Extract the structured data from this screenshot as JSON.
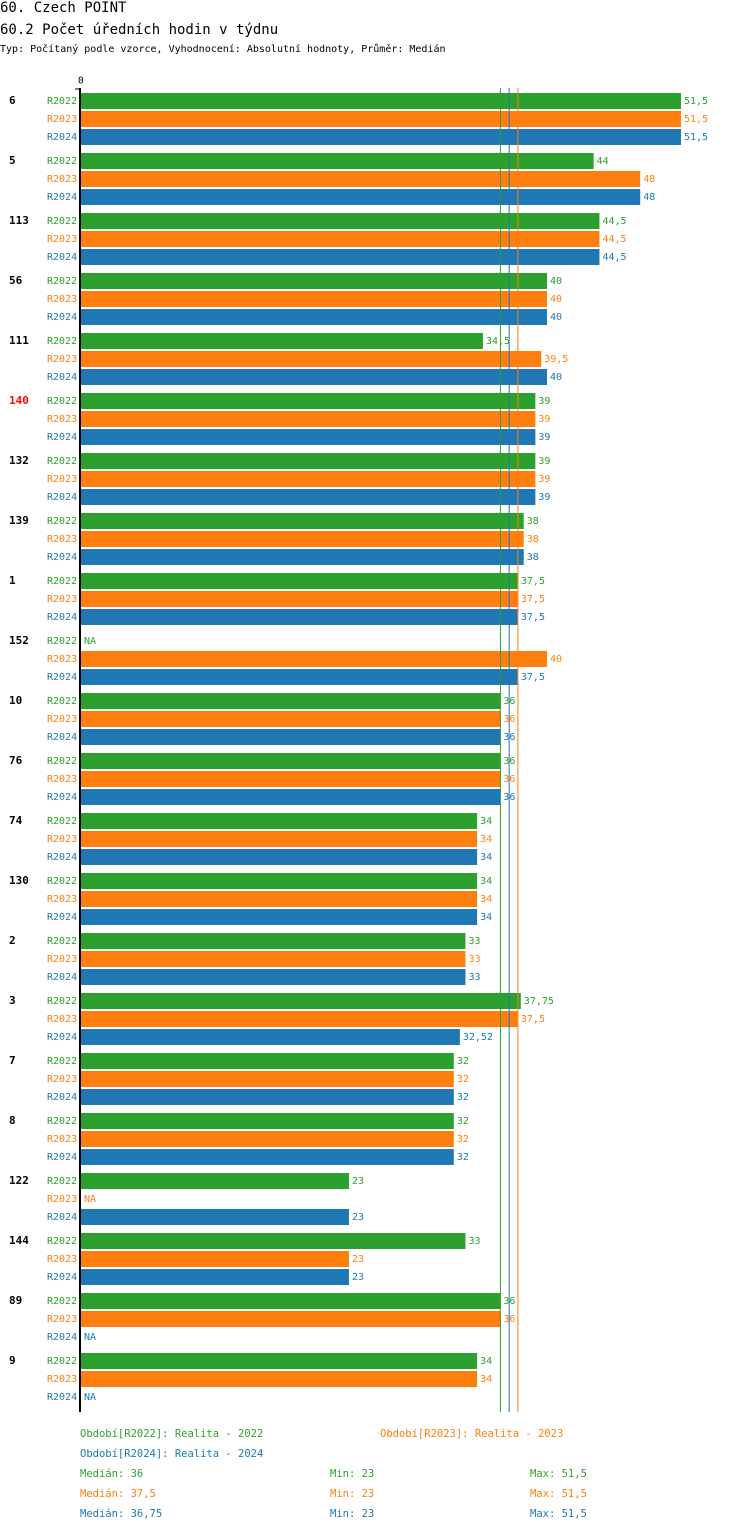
{
  "header": {
    "title": "60. Czech POINT",
    "subtitle": "60.2 Počet úředních hodin v týdnu",
    "type_line": "Typ: Počítaný podle vzorce, Vyhodnocení: Absolutní hodnoty, Průměr: Medián"
  },
  "colors": {
    "R2022": "#2ca02c",
    "R2023": "#ff7f0e",
    "R2024": "#1f77b4",
    "highlight": "#ff0000",
    "axis": "#000000"
  },
  "chart_data": {
    "type": "bar",
    "orientation": "horizontal",
    "axis_zero_label": "0",
    "xlim": [
      0,
      51.5
    ],
    "series_names": [
      "R2022",
      "R2023",
      "R2024"
    ],
    "categories": [
      {
        "label": "6",
        "highlight": false,
        "values": [
          51.5,
          51.5,
          51.5
        ],
        "value_labels": [
          "51,5",
          "51,5",
          "51,5"
        ]
      },
      {
        "label": "5",
        "highlight": false,
        "values": [
          44,
          48,
          48
        ],
        "value_labels": [
          "44",
          "48",
          "48"
        ]
      },
      {
        "label": "113",
        "highlight": false,
        "values": [
          44.5,
          44.5,
          44.5
        ],
        "value_labels": [
          "44,5",
          "44,5",
          "44,5"
        ]
      },
      {
        "label": "56",
        "highlight": false,
        "values": [
          40,
          40,
          40
        ],
        "value_labels": [
          "40",
          "40",
          "40"
        ]
      },
      {
        "label": "111",
        "highlight": false,
        "values": [
          34.5,
          39.5,
          40
        ],
        "value_labels": [
          "34,5",
          "39,5",
          "40"
        ]
      },
      {
        "label": "140",
        "highlight": true,
        "values": [
          39,
          39,
          39
        ],
        "value_labels": [
          "39",
          "39",
          "39"
        ]
      },
      {
        "label": "132",
        "highlight": false,
        "values": [
          39,
          39,
          39
        ],
        "value_labels": [
          "39",
          "39",
          "39"
        ]
      },
      {
        "label": "139",
        "highlight": false,
        "values": [
          38,
          38,
          38
        ],
        "value_labels": [
          "38",
          "38",
          "38"
        ]
      },
      {
        "label": "1",
        "highlight": false,
        "values": [
          37.5,
          37.5,
          37.5
        ],
        "value_labels": [
          "37,5",
          "37,5",
          "37,5"
        ]
      },
      {
        "label": "152",
        "highlight": false,
        "values": [
          null,
          40,
          37.5
        ],
        "value_labels": [
          "NA",
          "40",
          "37,5"
        ]
      },
      {
        "label": "10",
        "highlight": false,
        "values": [
          36,
          36,
          36
        ],
        "value_labels": [
          "36",
          "36",
          "36"
        ]
      },
      {
        "label": "76",
        "highlight": false,
        "values": [
          36,
          36,
          36
        ],
        "value_labels": [
          "36",
          "36",
          "36"
        ]
      },
      {
        "label": "74",
        "highlight": false,
        "values": [
          34,
          34,
          34
        ],
        "value_labels": [
          "34",
          "34",
          "34"
        ]
      },
      {
        "label": "130",
        "highlight": false,
        "values": [
          34,
          34,
          34
        ],
        "value_labels": [
          "34",
          "34",
          "34"
        ]
      },
      {
        "label": "2",
        "highlight": false,
        "values": [
          33,
          33,
          33
        ],
        "value_labels": [
          "33",
          "33",
          "33"
        ]
      },
      {
        "label": "3",
        "highlight": false,
        "values": [
          37.75,
          37.5,
          32.52
        ],
        "value_labels": [
          "37,75",
          "37,5",
          "32,52"
        ]
      },
      {
        "label": "7",
        "highlight": false,
        "values": [
          32,
          32,
          32
        ],
        "value_labels": [
          "32",
          "32",
          "32"
        ]
      },
      {
        "label": "8",
        "highlight": false,
        "values": [
          32,
          32,
          32
        ],
        "value_labels": [
          "32",
          "32",
          "32"
        ]
      },
      {
        "label": "122",
        "highlight": false,
        "values": [
          23,
          null,
          23
        ],
        "value_labels": [
          "23",
          "NA",
          "23"
        ]
      },
      {
        "label": "144",
        "highlight": false,
        "values": [
          33,
          23,
          23
        ],
        "value_labels": [
          "33",
          "23",
          "23"
        ]
      },
      {
        "label": "89",
        "highlight": false,
        "values": [
          36,
          36,
          null
        ],
        "value_labels": [
          "36",
          "36",
          "NA"
        ]
      },
      {
        "label": "9",
        "highlight": false,
        "values": [
          34,
          34,
          null
        ],
        "value_labels": [
          "34",
          "34",
          "NA"
        ]
      }
    ],
    "median_lines": [
      {
        "series": "R2022",
        "value": 36
      },
      {
        "series": "R2023",
        "value": 37.5
      },
      {
        "series": "R2024",
        "value": 36.75
      }
    ]
  },
  "legend": {
    "r2022": "Období[R2022]: Realita - 2022",
    "r2023": "Období[R2023]: Realita - 2023",
    "r2024": "Období[R2024]: Realita - 2024",
    "stats": [
      {
        "median": "Medián: 36",
        "min": "Min: 23",
        "max": "Max: 51,5"
      },
      {
        "median": "Medián: 37,5",
        "min": "Min: 23",
        "max": "Max: 51,5"
      },
      {
        "median": "Medián: 36,75",
        "min": "Min: 23",
        "max": "Max: 51,5"
      }
    ]
  }
}
